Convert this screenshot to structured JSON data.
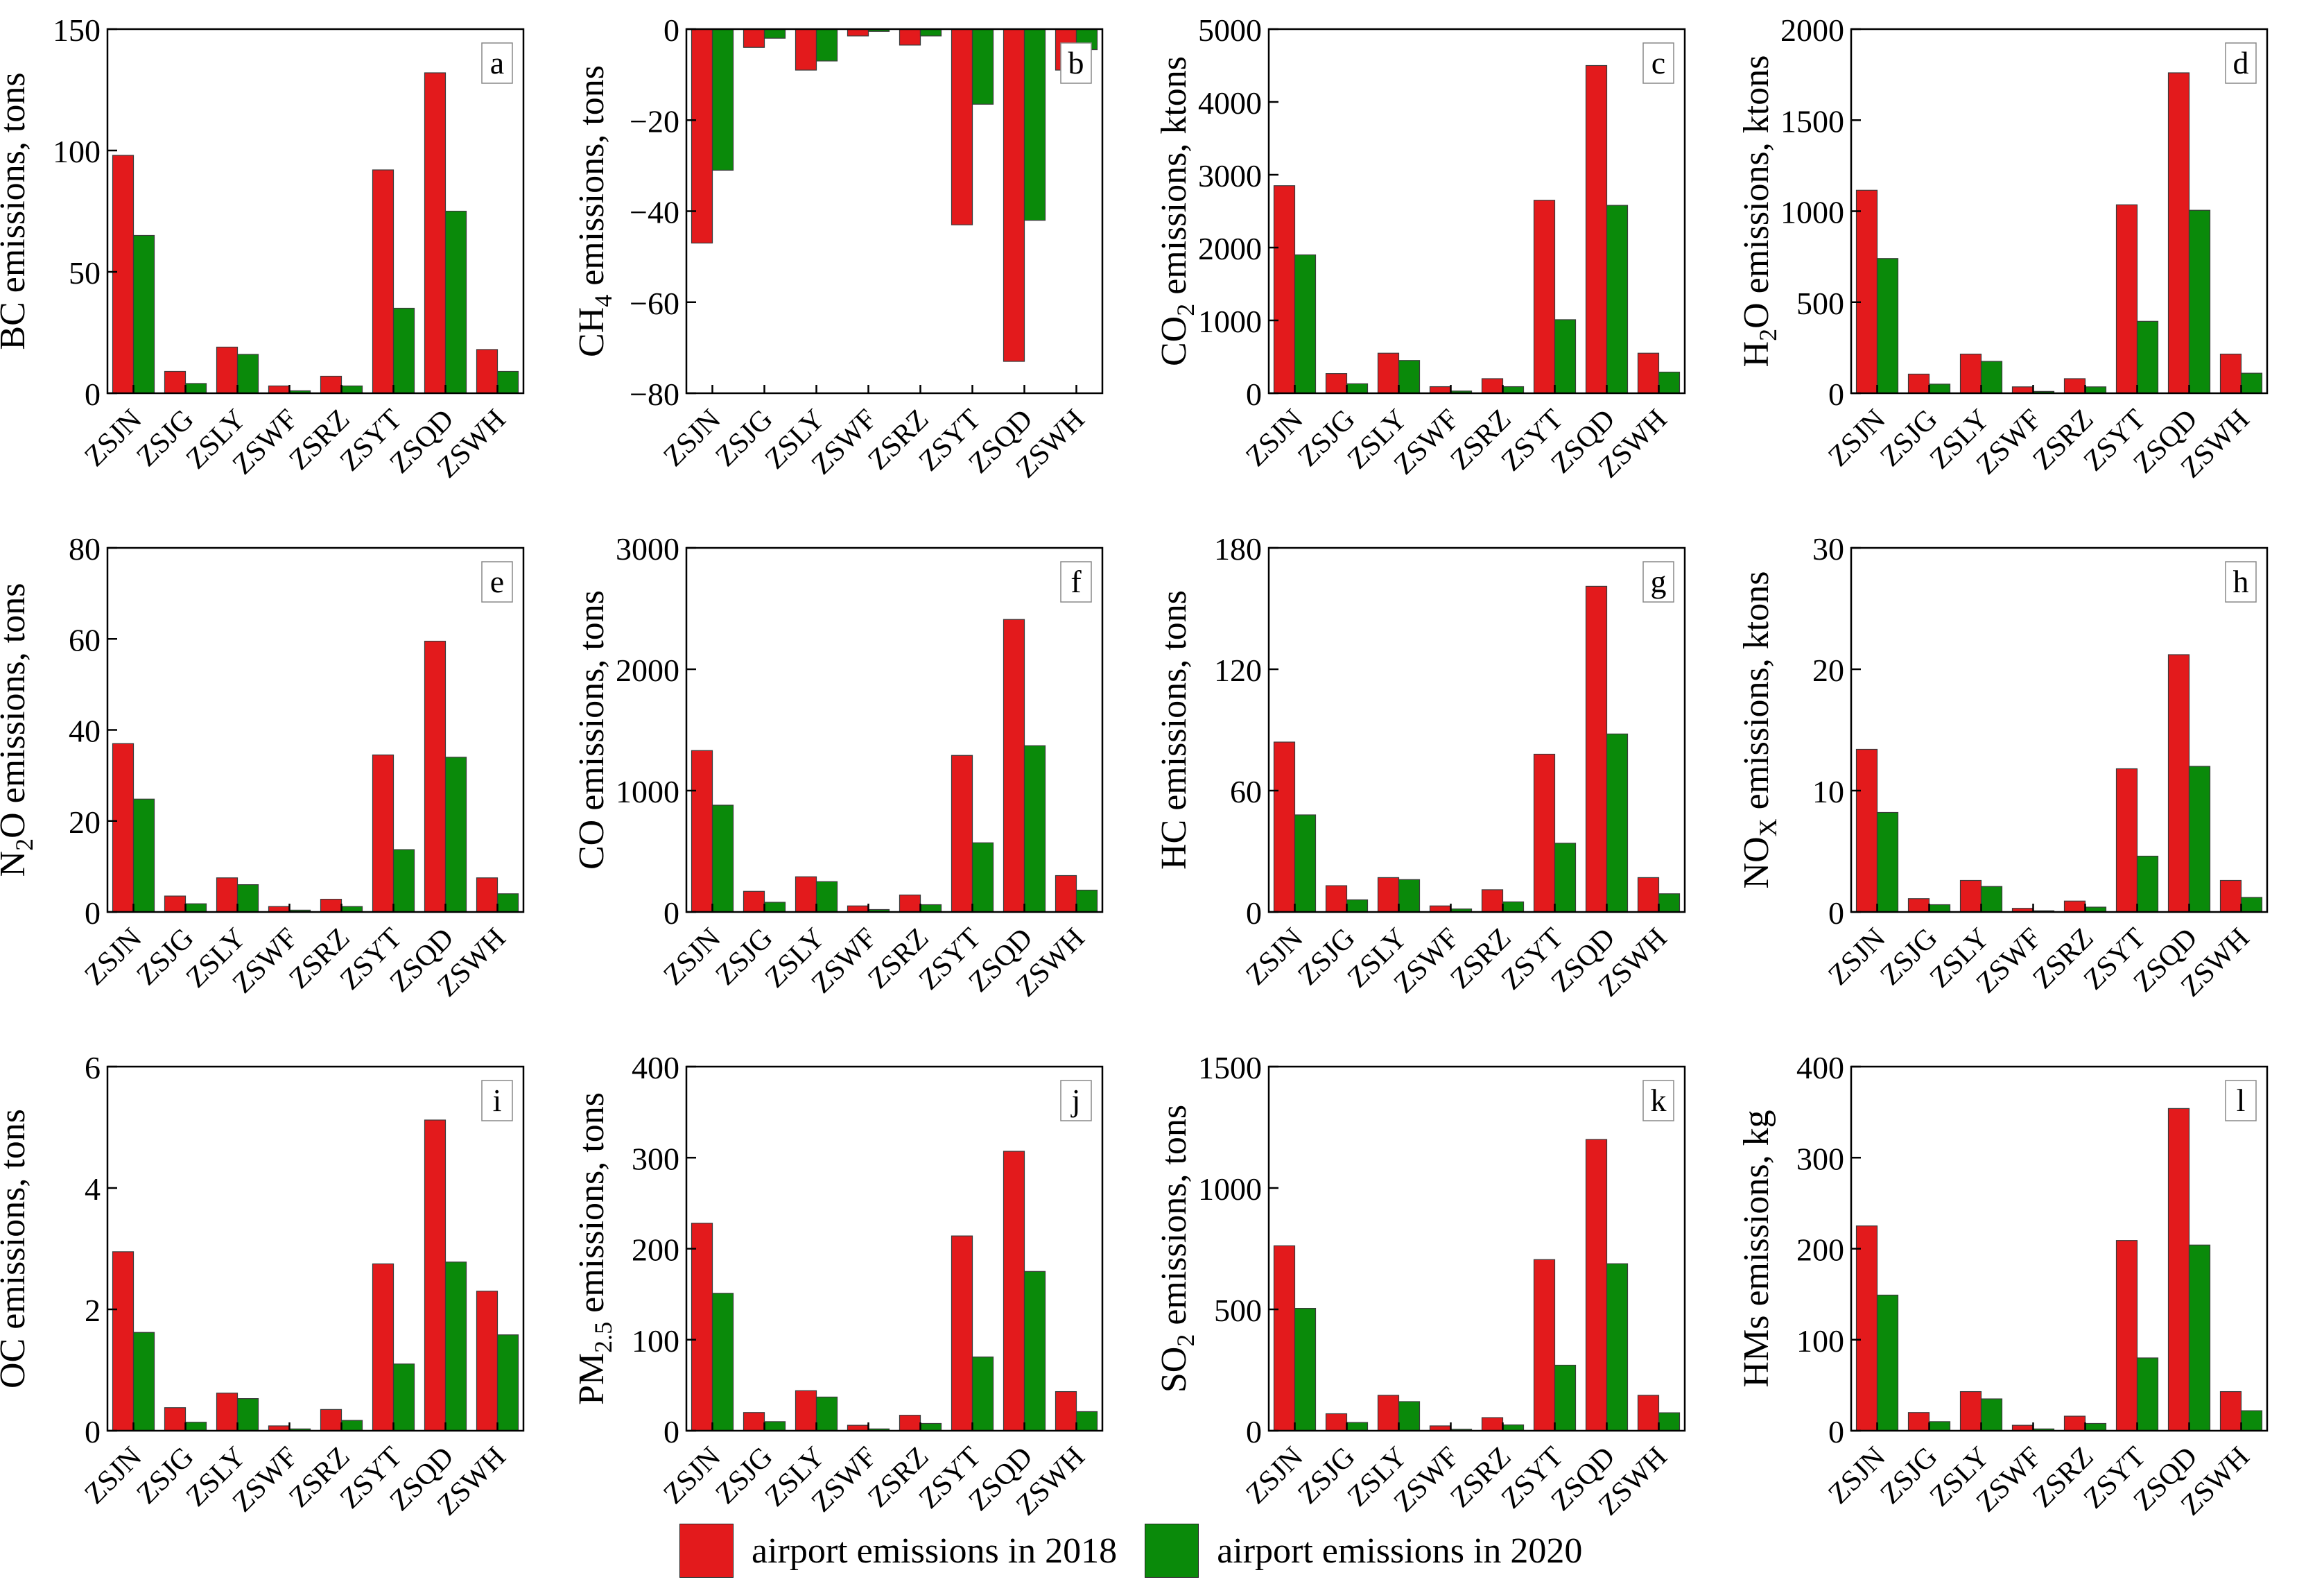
{
  "colors": {
    "y2018": "#e31a1c",
    "y2020": "#0a8a0a"
  },
  "legend": {
    "y2018": "airport emissions in 2018",
    "y2020": "airport emissions in 2020"
  },
  "chart_data": [
    {
      "panel": "a",
      "type": "bar",
      "ylabel": "BC emissions, tons",
      "ylim": [
        0,
        150
      ],
      "yticks": [
        0,
        50,
        100,
        150
      ],
      "categories": [
        "ZSJN",
        "ZSJG",
        "ZSLY",
        "ZSWF",
        "ZSRZ",
        "ZSYT",
        "ZSQD",
        "ZSWH"
      ],
      "series": [
        {
          "name": "airport emissions in 2018",
          "values": [
            98,
            9,
            19,
            3,
            7,
            92,
            132,
            18
          ]
        },
        {
          "name": "airport emissions in 2020",
          "values": [
            65,
            4,
            16,
            1,
            3,
            35,
            75,
            9
          ]
        }
      ]
    },
    {
      "panel": "b",
      "type": "bar",
      "ylabel": "CH4 emissions, tons",
      "ylim": [
        -80,
        0
      ],
      "yticks": [
        -80,
        -60,
        -40,
        -20,
        0
      ],
      "categories": [
        "ZSJN",
        "ZSJG",
        "ZSLY",
        "ZSWF",
        "ZSRZ",
        "ZSYT",
        "ZSQD",
        "ZSWH"
      ],
      "series": [
        {
          "name": "airport emissions in 2018",
          "values": [
            -47,
            -4,
            -9,
            -1.5,
            -3.5,
            -43,
            -73,
            -9
          ]
        },
        {
          "name": "airport emissions in 2020",
          "values": [
            -31,
            -2,
            -7,
            -0.5,
            -1.5,
            -16.5,
            -42,
            -4.5
          ]
        }
      ]
    },
    {
      "panel": "c",
      "type": "bar",
      "ylabel": "CO2 emissions, ktons",
      "ylim": [
        0,
        5000
      ],
      "yticks": [
        0,
        1000,
        2000,
        3000,
        4000,
        5000
      ],
      "categories": [
        "ZSJN",
        "ZSJG",
        "ZSLY",
        "ZSWF",
        "ZSRZ",
        "ZSYT",
        "ZSQD",
        "ZSWH"
      ],
      "series": [
        {
          "name": "airport emissions in 2018",
          "values": [
            2850,
            270,
            550,
            90,
            200,
            2650,
            4500,
            550
          ]
        },
        {
          "name": "airport emissions in 2020",
          "values": [
            1900,
            130,
            450,
            30,
            90,
            1010,
            2580,
            290
          ]
        }
      ]
    },
    {
      "panel": "d",
      "type": "bar",
      "ylabel": "H2O emissions, ktons",
      "ylim": [
        0,
        2000
      ],
      "yticks": [
        0,
        500,
        1000,
        1500,
        2000
      ],
      "categories": [
        "ZSJN",
        "ZSJG",
        "ZSLY",
        "ZSWF",
        "ZSRZ",
        "ZSYT",
        "ZSQD",
        "ZSWH"
      ],
      "series": [
        {
          "name": "airport emissions in 2018",
          "values": [
            1115,
            105,
            215,
            35,
            80,
            1035,
            1760,
            215
          ]
        },
        {
          "name": "airport emissions in 2020",
          "values": [
            740,
            50,
            175,
            10,
            35,
            395,
            1005,
            110
          ]
        }
      ]
    },
    {
      "panel": "e",
      "type": "bar",
      "ylabel": "N2O emissions, tons",
      "ylim": [
        0,
        80
      ],
      "yticks": [
        0,
        20,
        40,
        60,
        80
      ],
      "categories": [
        "ZSJN",
        "ZSJG",
        "ZSLY",
        "ZSWF",
        "ZSRZ",
        "ZSYT",
        "ZSQD",
        "ZSWH"
      ],
      "series": [
        {
          "name": "airport emissions in 2018",
          "values": [
            37,
            3.5,
            7.5,
            1.2,
            2.8,
            34.5,
            59.5,
            7.5
          ]
        },
        {
          "name": "airport emissions in 2020",
          "values": [
            24.8,
            1.8,
            6,
            0.4,
            1.2,
            13.7,
            34,
            4
          ]
        }
      ]
    },
    {
      "panel": "f",
      "type": "bar",
      "ylabel": "CO emissions, tons",
      "ylim": [
        0,
        3000
      ],
      "yticks": [
        0,
        1000,
        2000,
        3000
      ],
      "categories": [
        "ZSJN",
        "ZSJG",
        "ZSLY",
        "ZSWF",
        "ZSRZ",
        "ZSYT",
        "ZSQD",
        "ZSWH"
      ],
      "series": [
        {
          "name": "airport emissions in 2018",
          "values": [
            1330,
            170,
            290,
            50,
            140,
            1290,
            2410,
            300
          ]
        },
        {
          "name": "airport emissions in 2020",
          "values": [
            880,
            80,
            250,
            20,
            60,
            570,
            1370,
            180
          ]
        }
      ]
    },
    {
      "panel": "g",
      "type": "bar",
      "ylabel": "HC emissions, tons",
      "ylim": [
        0,
        180
      ],
      "yticks": [
        0,
        60,
        120,
        180
      ],
      "categories": [
        "ZSJN",
        "ZSJG",
        "ZSLY",
        "ZSWF",
        "ZSRZ",
        "ZSYT",
        "ZSQD",
        "ZSWH"
      ],
      "series": [
        {
          "name": "airport emissions in 2018",
          "values": [
            84,
            13,
            17,
            3,
            11,
            78,
            161,
            17
          ]
        },
        {
          "name": "airport emissions in 2020",
          "values": [
            48,
            6,
            16,
            1.5,
            5,
            34,
            88,
            9
          ]
        }
      ]
    },
    {
      "panel": "h",
      "type": "bar",
      "ylabel": "NOX emissions, ktons",
      "ylim": [
        0,
        30
      ],
      "yticks": [
        0,
        10,
        20,
        30
      ],
      "categories": [
        "ZSJN",
        "ZSJG",
        "ZSLY",
        "ZSWF",
        "ZSRZ",
        "ZSYT",
        "ZSQD",
        "ZSWH"
      ],
      "series": [
        {
          "name": "airport emissions in 2018",
          "values": [
            13.4,
            1.1,
            2.6,
            0.3,
            0.9,
            11.8,
            21.2,
            2.6
          ]
        },
        {
          "name": "airport emissions in 2020",
          "values": [
            8.2,
            0.6,
            2.1,
            0.1,
            0.4,
            4.6,
            12,
            1.2
          ]
        }
      ]
    },
    {
      "panel": "i",
      "type": "bar",
      "ylabel": "OC emissions, tons",
      "ylim": [
        0,
        6
      ],
      "yticks": [
        0,
        2,
        4,
        6
      ],
      "categories": [
        "ZSJN",
        "ZSJG",
        "ZSLY",
        "ZSWF",
        "ZSRZ",
        "ZSYT",
        "ZSQD",
        "ZSWH"
      ],
      "series": [
        {
          "name": "airport emissions in 2018",
          "values": [
            2.95,
            0.38,
            0.62,
            0.08,
            0.35,
            2.75,
            5.12,
            2.3
          ]
        },
        {
          "name": "airport emissions in 2020",
          "values": [
            1.62,
            0.14,
            0.53,
            0.03,
            0.17,
            1.1,
            2.78,
            1.58
          ]
        }
      ]
    },
    {
      "panel": "j",
      "type": "bar",
      "ylabel": "PM2.5 emissions, tons",
      "ylim": [
        0,
        400
      ],
      "yticks": [
        0,
        100,
        200,
        300,
        400
      ],
      "categories": [
        "ZSJN",
        "ZSJG",
        "ZSLY",
        "ZSWF",
        "ZSRZ",
        "ZSYT",
        "ZSQD",
        "ZSWH"
      ],
      "series": [
        {
          "name": "airport emissions in 2018",
          "values": [
            228,
            20,
            44,
            6,
            17,
            214,
            307,
            43
          ]
        },
        {
          "name": "airport emissions in 2020",
          "values": [
            151,
            10,
            37,
            2,
            8,
            81,
            175,
            21
          ]
        }
      ]
    },
    {
      "panel": "k",
      "type": "bar",
      "ylabel": "SO2 emissions, tons",
      "ylim": [
        0,
        1500
      ],
      "yticks": [
        0,
        500,
        1000,
        1500
      ],
      "categories": [
        "ZSJN",
        "ZSJG",
        "ZSLY",
        "ZSWF",
        "ZSRZ",
        "ZSYT",
        "ZSQD",
        "ZSWH"
      ],
      "series": [
        {
          "name": "airport emissions in 2018",
          "values": [
            762,
            70,
            146,
            20,
            54,
            705,
            1200,
            146
          ]
        },
        {
          "name": "airport emissions in 2020",
          "values": [
            504,
            34,
            120,
            6,
            24,
            270,
            688,
            74
          ]
        }
      ]
    },
    {
      "panel": "l",
      "type": "bar",
      "ylabel": "HMs emissions, kg",
      "ylim": [
        0,
        400
      ],
      "yticks": [
        0,
        100,
        200,
        300,
        400
      ],
      "categories": [
        "ZSJN",
        "ZSJG",
        "ZSLY",
        "ZSWF",
        "ZSRZ",
        "ZSYT",
        "ZSQD",
        "ZSWH"
      ],
      "series": [
        {
          "name": "airport emissions in 2018",
          "values": [
            225,
            20,
            43,
            6,
            16,
            209,
            354,
            43
          ]
        },
        {
          "name": "airport emissions in 2020",
          "values": [
            149,
            10,
            35,
            2,
            8,
            80,
            204,
            22
          ]
        }
      ]
    }
  ]
}
